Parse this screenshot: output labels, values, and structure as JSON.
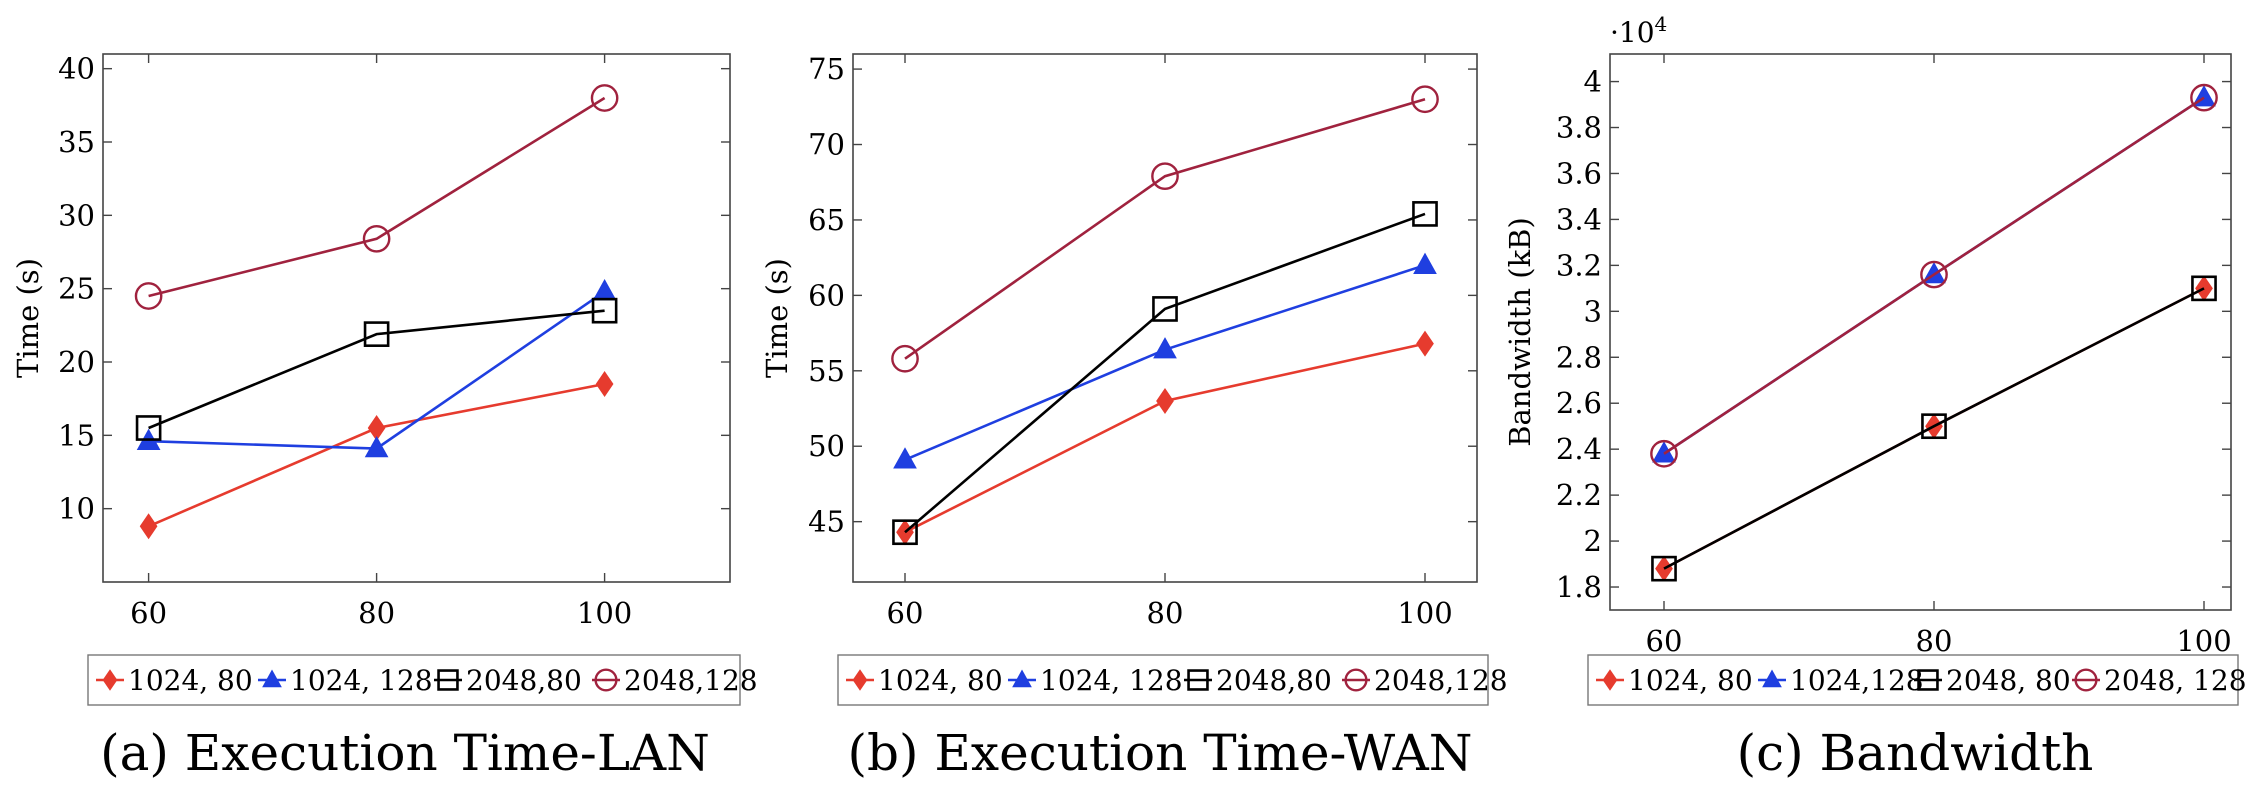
{
  "chart_data": [
    {
      "type": "line",
      "caption": "(a) Execution Time-LAN",
      "x": [
        60,
        80,
        100
      ],
      "xticks": [
        "60",
        "80",
        "100"
      ],
      "xlim": [
        56,
        111
      ],
      "ylabel": "Time (s)",
      "ylim": [
        5,
        41
      ],
      "yticks": [
        "10",
        "15",
        "20",
        "25",
        "30",
        "35",
        "40"
      ],
      "ytick_values": [
        10,
        15,
        20,
        25,
        30,
        35,
        40
      ],
      "y_multiplier": "",
      "grid": false,
      "legend_position": "bottom",
      "series": [
        {
          "name": "1024, 80",
          "values": [
            8.8,
            15.5,
            18.5
          ],
          "color": "#e63b2e",
          "marker": "diamond"
        },
        {
          "name": "1024, 128",
          "values": [
            14.6,
            14.1,
            24.8
          ],
          "color": "#1f3fe0",
          "marker": "triangle"
        },
        {
          "name": "2048,80",
          "values": [
            15.5,
            21.9,
            23.5
          ],
          "color": "#000000",
          "marker": "square"
        },
        {
          "name": "2048,128",
          "values": [
            24.5,
            28.4,
            38.0
          ],
          "color": "#a0223e",
          "marker": "circle"
        }
      ]
    },
    {
      "type": "line",
      "caption": "(b) Execution Time-WAN",
      "x": [
        60,
        80,
        100
      ],
      "xticks": [
        "60",
        "80",
        "100"
      ],
      "xlim": [
        56,
        104
      ],
      "ylabel": "Time (s)",
      "ylim": [
        41,
        76
      ],
      "yticks": [
        "45",
        "50",
        "55",
        "60",
        "65",
        "70",
        "75"
      ],
      "ytick_values": [
        45,
        50,
        55,
        60,
        65,
        70,
        75
      ],
      "y_multiplier": "",
      "grid": false,
      "legend_position": "bottom",
      "series": [
        {
          "name": "1024, 80",
          "values": [
            44.3,
            53.0,
            56.8
          ],
          "color": "#e63b2e",
          "marker": "diamond"
        },
        {
          "name": "1024, 128",
          "values": [
            49.1,
            56.4,
            62.0
          ],
          "color": "#1f3fe0",
          "marker": "triangle"
        },
        {
          "name": "2048,80",
          "values": [
            44.3,
            59.1,
            65.4
          ],
          "color": "#000000",
          "marker": "square"
        },
        {
          "name": "2048,128",
          "values": [
            55.8,
            67.9,
            73.0
          ],
          "color": "#a0223e",
          "marker": "circle"
        }
      ]
    },
    {
      "type": "line",
      "caption": "(c) Bandwidth",
      "x": [
        60,
        80,
        100
      ],
      "xticks": [
        "60",
        "80",
        "100"
      ],
      "xlim": [
        56,
        102
      ],
      "ylabel": "Bandwidth (kB)",
      "ylim": [
        17000,
        41200
      ],
      "yticks": [
        "1.8",
        "2",
        "2.2",
        "2.4",
        "2.6",
        "2.8",
        "3",
        "3.2",
        "3.4",
        "3.6",
        "3.8",
        "4"
      ],
      "ytick_values": [
        18000,
        20000,
        22000,
        24000,
        26000,
        28000,
        30000,
        32000,
        34000,
        36000,
        38000,
        40000
      ],
      "y_multiplier": "·10",
      "y_multiplier_exp": "4",
      "grid": false,
      "legend_position": "bottom",
      "series": [
        {
          "name": "1024, 80",
          "values": [
            18800,
            25000,
            31000
          ],
          "color": "#e63b2e",
          "marker": "diamond"
        },
        {
          "name": "1024,128",
          "values": [
            23800,
            31600,
            39300
          ],
          "color": "#1f3fe0",
          "marker": "triangle"
        },
        {
          "name": "2048, 80",
          "values": [
            18800,
            25000,
            31000
          ],
          "color": "#000000",
          "marker": "square"
        },
        {
          "name": "2048, 128",
          "values": [
            23800,
            31600,
            39300
          ],
          "color": "#a0223e",
          "marker": "circle"
        }
      ]
    }
  ]
}
